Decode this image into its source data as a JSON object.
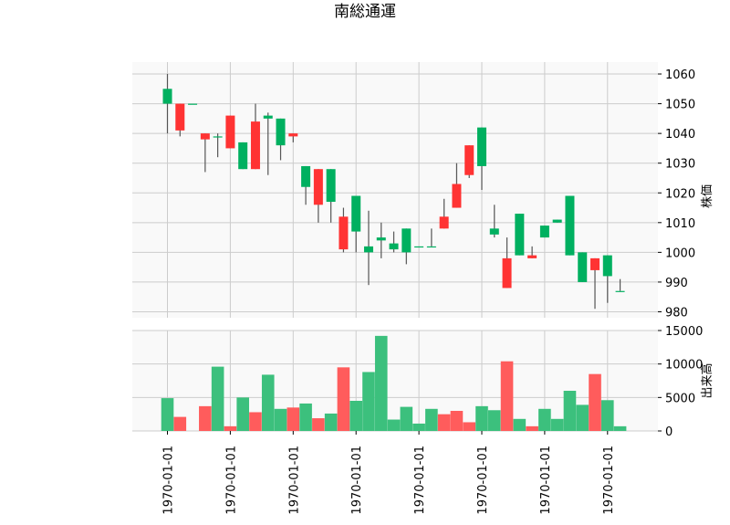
{
  "chart_data": {
    "type": "candlestick",
    "title": "南総通運",
    "price_axis": {
      "label": "株価",
      "ylim": [
        978,
        1064
      ],
      "ticks": [
        980,
        990,
        1000,
        1010,
        1020,
        1030,
        1040,
        1050,
        1060
      ]
    },
    "volume_axis": {
      "label": "出来高",
      "ylim": [
        0,
        15000
      ],
      "ticks": [
        0,
        5000,
        10000,
        15000
      ]
    },
    "x_tick_labels": [
      "1970-01-01",
      "1970-01-01",
      "1970-01-01",
      "1970-01-01",
      "1970-01-01",
      "1970-01-01",
      "1970-01-01",
      "1970-01-01"
    ],
    "grid": true,
    "colors": {
      "up": "#00b060",
      "down": "#ff3333",
      "up_volume": "#3cc07d",
      "down_volume": "#ff5c5c",
      "wick": "#555555",
      "panel_bg": "#f9f9f9",
      "grid": "#cccccc"
    },
    "candles": [
      {
        "o": 1050,
        "h": 1060,
        "l": 1040,
        "c": 1055,
        "v": 4900
      },
      {
        "o": 1050,
        "h": 1050,
        "l": 1039,
        "c": 1041,
        "v": 2100
      },
      {
        "o": 1050,
        "h": 1050,
        "l": 1050,
        "c": 1050,
        "v": 0
      },
      {
        "o": 1040,
        "h": 1040,
        "l": 1027,
        "c": 1038,
        "v": 3700
      },
      {
        "o": 1039,
        "h": 1040,
        "l": 1032,
        "c": 1039,
        "v": 9600
      },
      {
        "o": 1046,
        "h": 1046,
        "l": 1035,
        "c": 1035,
        "v": 700
      },
      {
        "o": 1028,
        "h": 1037,
        "l": 1028,
        "c": 1037,
        "v": 5000
      },
      {
        "o": 1044,
        "h": 1050,
        "l": 1028,
        "c": 1028,
        "v": 2800
      },
      {
        "o": 1045,
        "h": 1047,
        "l": 1026,
        "c": 1046,
        "v": 8400
      },
      {
        "o": 1036,
        "h": 1045,
        "l": 1031,
        "c": 1045,
        "v": 3300
      },
      {
        "o": 1040,
        "h": 1040,
        "l": 1037,
        "c": 1039,
        "v": 3500
      },
      {
        "o": 1022,
        "h": 1029,
        "l": 1016,
        "c": 1029,
        "v": 4100
      },
      {
        "o": 1028,
        "h": 1028,
        "l": 1010,
        "c": 1016,
        "v": 1900
      },
      {
        "o": 1017,
        "h": 1028,
        "l": 1010,
        "c": 1028,
        "v": 2600
      },
      {
        "o": 1012,
        "h": 1015,
        "l": 1000,
        "c": 1001,
        "v": 9500
      },
      {
        "o": 1007,
        "h": 1019,
        "l": 1000,
        "c": 1019,
        "v": 4500
      },
      {
        "o": 1000,
        "h": 1014,
        "l": 989,
        "c": 1002,
        "v": 8800
      },
      {
        "o": 1004,
        "h": 1010,
        "l": 998,
        "c": 1005,
        "v": 14200
      },
      {
        "o": 1001,
        "h": 1007,
        "l": 1000,
        "c": 1003,
        "v": 1700
      },
      {
        "o": 1000,
        "h": 1008,
        "l": 996,
        "c": 1008,
        "v": 3600
      },
      {
        "o": 1002,
        "h": 1002,
        "l": 1002,
        "c": 1002,
        "v": 1100
      },
      {
        "o": 1002,
        "h": 1008,
        "l": 1002,
        "c": 1002,
        "v": 3300
      },
      {
        "o": 1012,
        "h": 1018,
        "l": 1008,
        "c": 1008,
        "v": 2500
      },
      {
        "o": 1023,
        "h": 1030,
        "l": 1015,
        "c": 1015,
        "v": 3000
      },
      {
        "o": 1036,
        "h": 1036,
        "l": 1025,
        "c": 1026,
        "v": 1300
      },
      {
        "o": 1029,
        "h": 1042,
        "l": 1021,
        "c": 1042,
        "v": 3700
      },
      {
        "o": 1006,
        "h": 1016,
        "l": 1005,
        "c": 1008,
        "v": 3100
      },
      {
        "o": 998,
        "h": 1005,
        "l": 988,
        "c": 988,
        "v": 10400
      },
      {
        "o": 999,
        "h": 1013,
        "l": 999,
        "c": 1013,
        "v": 1800
      },
      {
        "o": 999,
        "h": 1002,
        "l": 998,
        "c": 998,
        "v": 700
      },
      {
        "o": 1005,
        "h": 1009,
        "l": 1005,
        "c": 1009,
        "v": 3300
      },
      {
        "o": 1010,
        "h": 1011,
        "l": 1010,
        "c": 1011,
        "v": 1800
      },
      {
        "o": 999,
        "h": 1019,
        "l": 999,
        "c": 1019,
        "v": 6000
      },
      {
        "o": 990,
        "h": 1000,
        "l": 990,
        "c": 1000,
        "v": 3900
      },
      {
        "o": 998,
        "h": 998,
        "l": 981,
        "c": 994,
        "v": 8500
      },
      {
        "o": 992,
        "h": 999,
        "l": 983,
        "c": 999,
        "v": 4600
      },
      {
        "o": 987,
        "h": 991,
        "l": 987,
        "c": 987,
        "v": 700
      }
    ]
  }
}
